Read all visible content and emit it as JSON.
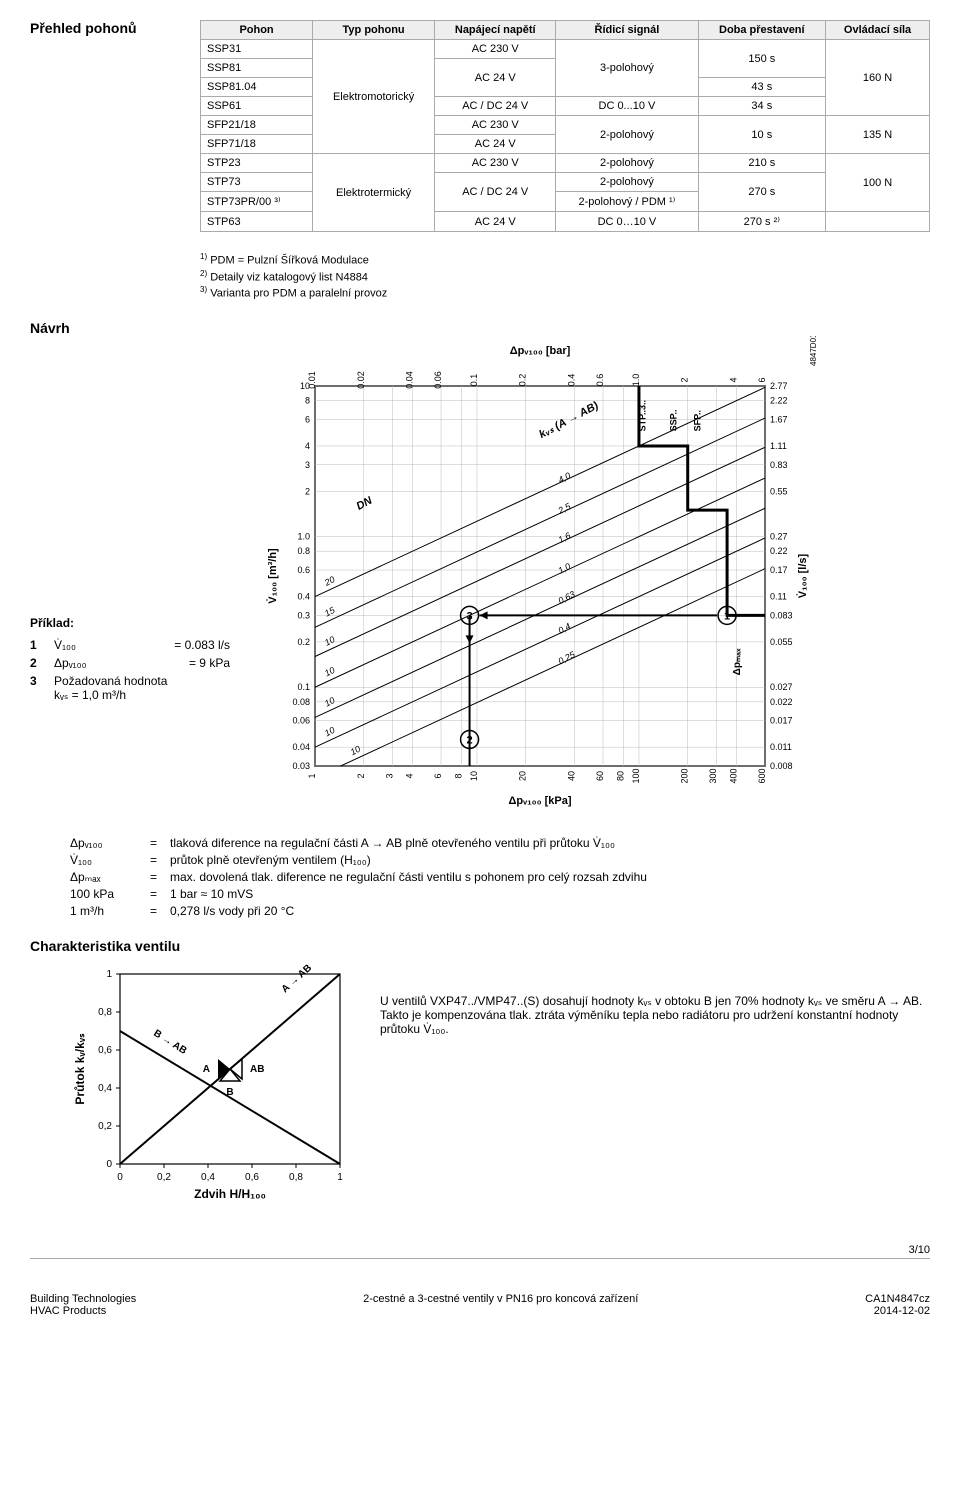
{
  "title_overview": "Přehled pohonů",
  "table": {
    "headers": [
      "Pohon",
      "Typ pohonu",
      "Napájecí napětí",
      "Řídicí signál",
      "Doba přestavení",
      "Ovládací síla"
    ],
    "rows": [
      {
        "c0": "SSP31",
        "c2": "AC 230 V"
      },
      {
        "c0": "SSP81"
      },
      {
        "c0": "SSP81.04"
      },
      {
        "c0": "SSP61",
        "c2": "AC / DC 24 V",
        "c3": "DC 0...10 V",
        "c4": "34 s"
      },
      {
        "c0": "SFP21/18",
        "c2": "AC 230 V"
      },
      {
        "c0": "SFP71/18",
        "c2": "AC 24 V"
      },
      {
        "c0": "STP23",
        "c2": "AC 230 V",
        "c3": "2-polohový",
        "c4": "210 s"
      },
      {
        "c0": "STP73",
        "c3": "2-polohový"
      },
      {
        "c0": "STP73PR/00 ³⁾",
        "c3": "2-polohový / PDM ¹⁾"
      },
      {
        "c0": "STP63",
        "c2": "AC 24 V",
        "c3": "DC 0…10 V",
        "c4": "270 s ²⁾"
      }
    ],
    "typ1": "Elektromotorický",
    "typ2": "Elektrotermický",
    "ac24v": "AC 24 V",
    "acdc24v": "AC / DC 24 V",
    "sig3pol": "3-polohový",
    "sig2pol": "2-polohový",
    "t150": "150 s",
    "t43": "43 s",
    "t10": "10 s",
    "t270": "270 s",
    "f160": "160 N",
    "f135": "135 N",
    "f100": "100 N"
  },
  "footnotes": {
    "f1": "PDM = Pulzní Šířková Modulace",
    "f2": "Detaily viz katalogový list N4884",
    "f3": "Varianta pro PDM a paralelní provoz"
  },
  "navrh_title": "Návrh",
  "priklad_title": "Příklad:",
  "example": {
    "r1": {
      "sym": "V̇₁₀₀",
      "val": "= 0.083 l/s"
    },
    "r2": {
      "sym": "Δpᵥ₁₀₀",
      "val": "= 9 kPa"
    },
    "r3": {
      "sym": "Požadovaná hodnota",
      "val": "kᵥₛ = 1,0 m³/h"
    }
  },
  "chart": {
    "top_title": "Δpᵥ₁₀₀ [bar]",
    "bottom_title": "Δpᵥ₁₀₀ [kPa]",
    "left_title": "V̇₁₀₀ [m³/h]",
    "right_title": "V̇₁₀₀ [l/s]",
    "side_label": "4847D01a",
    "dpmax": "Δpₘₐₓ",
    "top_ticks": [
      "0.01",
      "0.02",
      "0.04",
      "0.06",
      "0.1",
      "0.2",
      "0.4",
      "0.6",
      "1.0",
      "2",
      "4",
      "6"
    ],
    "bottom_ticks": [
      "1",
      "2",
      "3",
      "4",
      "6",
      "8",
      "10",
      "20",
      "40",
      "60",
      "80",
      "100",
      "200",
      "300",
      "400",
      "600"
    ],
    "left_ticks": [
      "10",
      "8",
      "6",
      "4",
      "3",
      "2",
      "1.0",
      "0.8",
      "0.6",
      "0.4",
      "0.3",
      "0.2",
      "0.1",
      "0.08",
      "0.06",
      "0.04",
      "0.03"
    ],
    "right_ticks": [
      "2.77",
      "2.22",
      "1.67",
      "1.11",
      "0.83",
      "0.55",
      "0.27",
      "0.22",
      "0.17",
      "0.11",
      "0.083",
      "0.055",
      "0.027",
      "0.022",
      "0.017",
      "0.011",
      "0.008"
    ],
    "dn_label": "DN",
    "kvs_label": "kᵥₛ (A → AB)",
    "dn_values": [
      "20",
      "15",
      "10",
      "10",
      "10",
      "10",
      "10"
    ],
    "kvs_values": [
      "4,0",
      "2,5",
      "1,6",
      "1,0",
      "0,63",
      "0,4",
      "0,25"
    ],
    "group_labels": [
      "STP..3..",
      "SSP..",
      "SFP.."
    ],
    "colors": {
      "grid": "#bbbbbb",
      "axis": "#000000",
      "diag": "#000000",
      "limit": "#000000",
      "example": "#000000",
      "bg": "#ffffff"
    },
    "font_size_ticks": 9,
    "font_size_labels": 11
  },
  "defs": {
    "d1": {
      "s": "Δpᵥ₁₀₀",
      "t": "tlaková diference na regulační části A → AB plně otevřeného ventilu při průtoku V̇₁₀₀"
    },
    "d2": {
      "s": "V̇₁₀₀",
      "t": "průtok plně otevřeným ventilem (H₁₀₀)"
    },
    "d3": {
      "s": "Δpₘₐₓ",
      "t": "max. dovolená tlak. diference ne regulační části ventilu s pohonem pro celý rozsah zdvihu"
    },
    "d4": {
      "s": "100 kPa",
      "t": "1 bar ≈ 10 mVS"
    },
    "d5": {
      "s": "1 m³/h",
      "t": "0,278 l/s vody při 20 °C"
    }
  },
  "charakteristika_title": "Charakteristika ventilu",
  "char_chart": {
    "xlabel": "Zdvih H/H₁₀₀",
    "ylabel": "Průtok  kᵥ/kᵥₛ",
    "ticks": [
      "0",
      "0,2",
      "0,4",
      "0,6",
      "0,8",
      "1"
    ],
    "labels": {
      "aab": "A → AB",
      "bab": "B → AB",
      "a": "A",
      "b": "B",
      "ab": "AB"
    }
  },
  "char_text": {
    "l1": "U ventilů VXP47../VMP47..(S) dosahují hodnoty kᵥₛ v obtoku B jen 70% hodnoty kᵥₛ ve směru A → AB.",
    "l2": "Takto je kompenzována tlak. ztráta výměníku tepla nebo radiátoru pro udržení konstantní hodnoty průtoku V̇₁₀₀."
  },
  "pagenum": "3/10",
  "footer": {
    "l1": "Building Technologies",
    "l2": "HVAC Products",
    "c1": "2-cestné a 3-cestné ventily v PN16 pro koncová zařízení",
    "r1": "CA1N4847cz",
    "r2": "2014-12-02"
  }
}
